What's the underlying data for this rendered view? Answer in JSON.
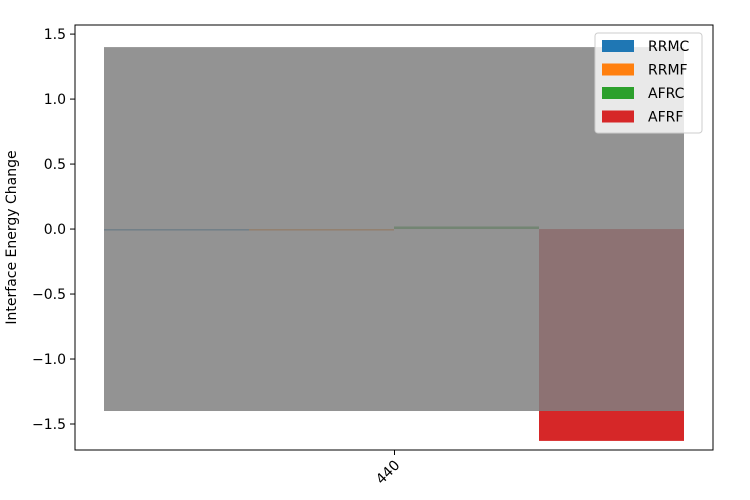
{
  "chart_data": {
    "type": "bar",
    "title": "",
    "xlabel": "",
    "ylabel": "Interface Energy Change",
    "categories": [
      "440"
    ],
    "series": [
      {
        "name": "RRMC",
        "values": [
          0.0
        ],
        "color": "#1f77b4"
      },
      {
        "name": "RRMF",
        "values": [
          -0.01
        ],
        "color": "#ff7f0e"
      },
      {
        "name": "AFRC",
        "values": [
          0.02
        ],
        "color": "#2ca02c"
      },
      {
        "name": "AFRF",
        "values": [
          -1.63
        ],
        "color": "#d62728"
      }
    ],
    "overlay_band": {
      "ymin": -1.4,
      "ymax": 1.4,
      "color": "#808080",
      "opacity": 0.85
    },
    "ylim": [
      -1.7,
      1.57
    ],
    "yticks": [
      -1.5,
      -1.0,
      -0.5,
      0.0,
      0.5,
      1.0,
      1.5
    ],
    "ytick_labels": [
      "−1.5",
      "−1.0",
      "−0.5",
      "0.0",
      "0.5",
      "1.0",
      "1.5"
    ],
    "xtick_labels": [
      "440"
    ],
    "legend_position": "top-right",
    "grid": false
  }
}
